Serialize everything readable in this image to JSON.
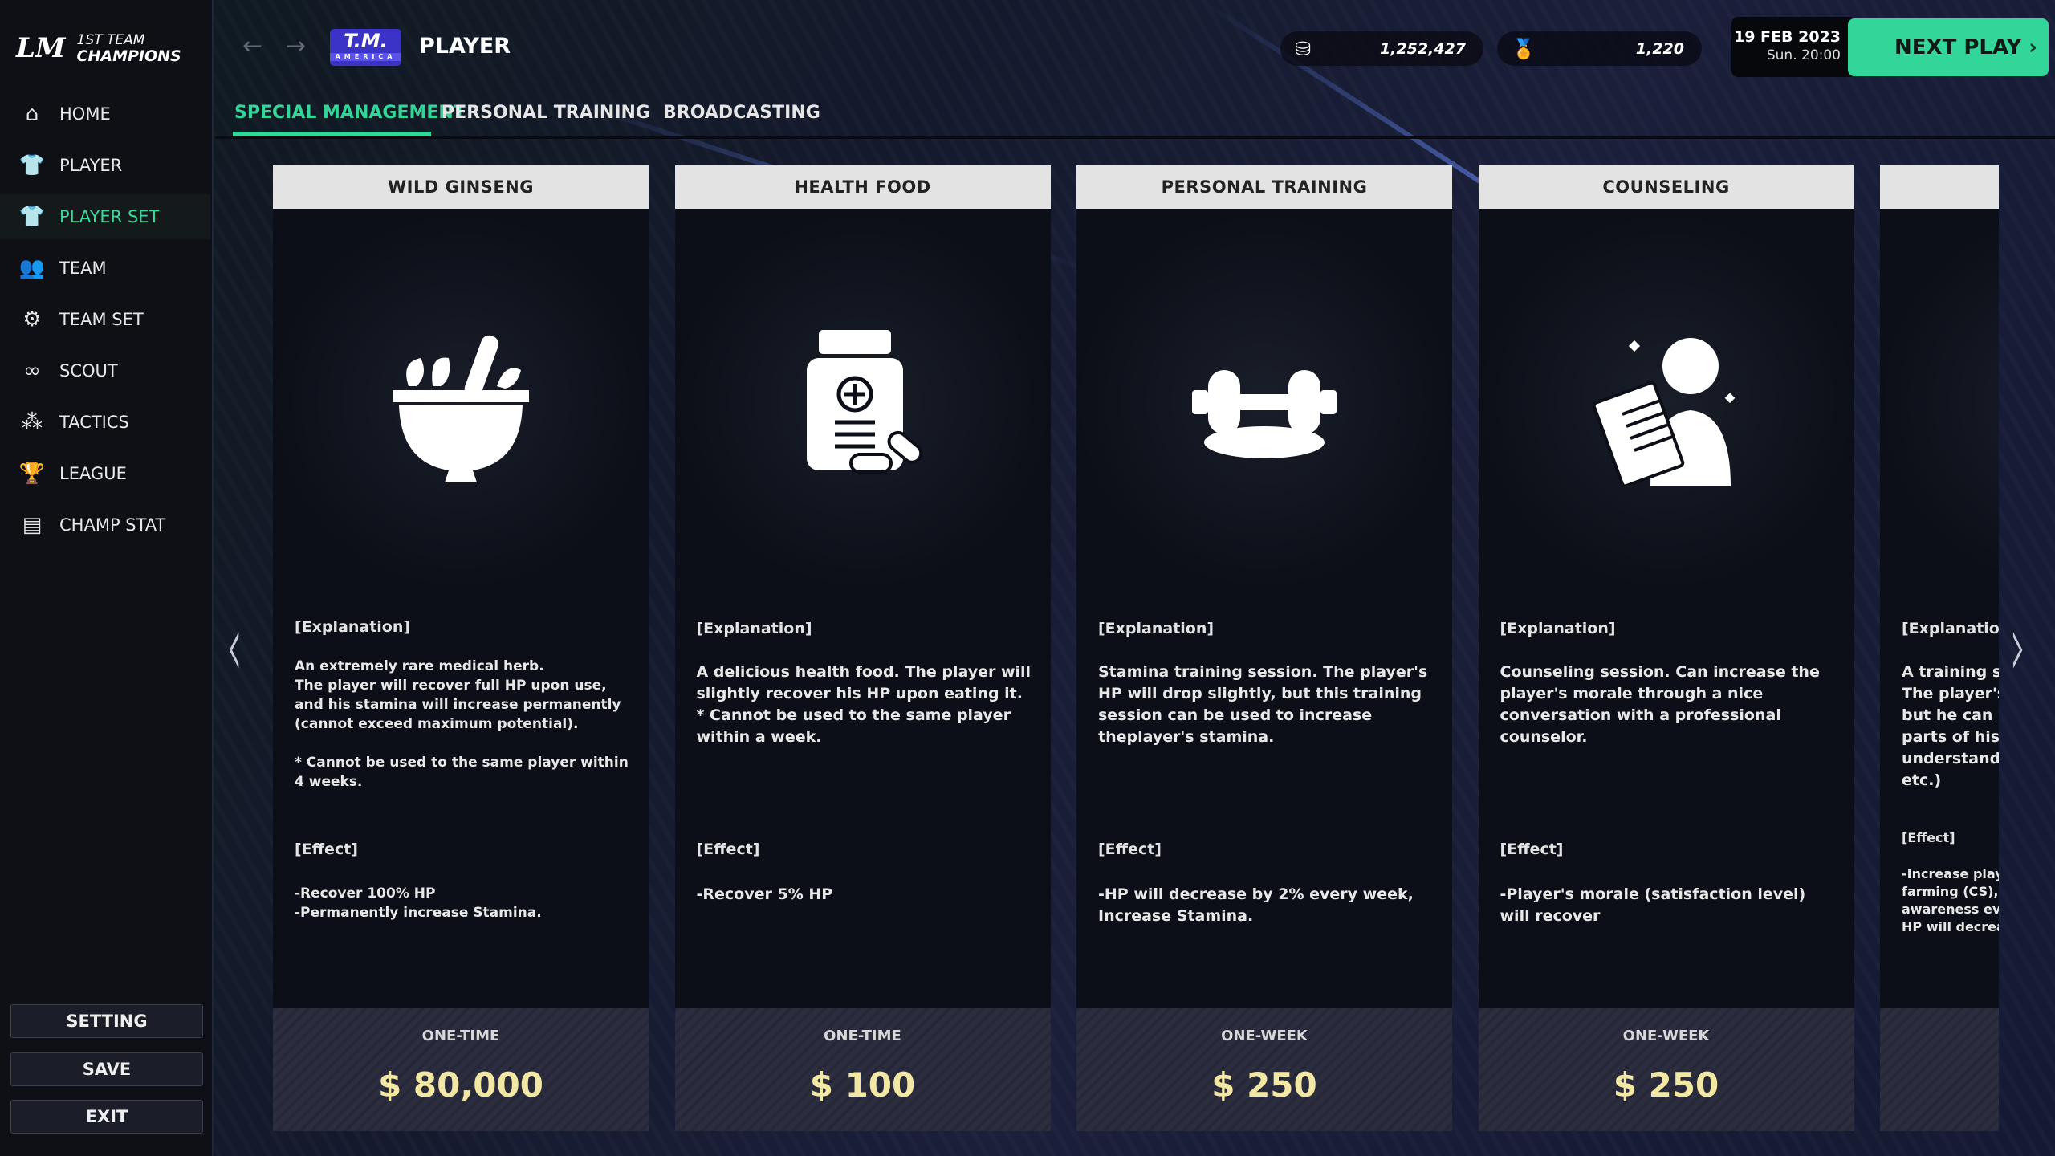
{
  "app": {
    "logo_mark": "LM",
    "logo_line1": "1ST TEAM",
    "logo_line2": "CHAMPIONS"
  },
  "sidebar": {
    "items": [
      {
        "label": "HOME",
        "icon": "home-icon",
        "glyph": "⌂"
      },
      {
        "label": "PLAYER",
        "icon": "shirt-icon",
        "glyph": "👕"
      },
      {
        "label": "PLAYER SET",
        "icon": "player-set-icon",
        "glyph": "👕",
        "active": true
      },
      {
        "label": "TEAM",
        "icon": "team-icon",
        "glyph": "👥"
      },
      {
        "label": "TEAM SET",
        "icon": "team-set-icon",
        "glyph": "⚙"
      },
      {
        "label": "SCOUT",
        "icon": "binoculars-icon",
        "glyph": "∞"
      },
      {
        "label": "TACTICS",
        "icon": "tactics-icon",
        "glyph": "⁂"
      },
      {
        "label": "LEAGUE",
        "icon": "trophy-icon",
        "glyph": "🏆"
      },
      {
        "label": "CHAMP STAT",
        "icon": "clipboard-icon",
        "glyph": "▤"
      }
    ],
    "setting": "SETTING",
    "save": "SAVE",
    "exit": "EXIT"
  },
  "header": {
    "team_logo": "T.M.",
    "team_logo_sub": "AMERICA",
    "title": "PLAYER",
    "money": "1,252,427",
    "medals": "1,220",
    "date": "19 FEB 2023",
    "time": "Sun. 20:00",
    "next_play": "NEXT PLAY"
  },
  "tabs": [
    {
      "label": "SPECIAL MANAGEMENT",
      "active": true
    },
    {
      "label": "PERSONAL TRAINING"
    },
    {
      "label": "BROADCASTING"
    }
  ],
  "colors": {
    "accent": "#33d699",
    "price": "#f3e7a4"
  },
  "cards": [
    {
      "title": "WILD GINSENG",
      "icon": "herb-bowl-icon",
      "explanation_label": "[Explanation]",
      "explanation": "An extremely rare medical herb.\nThe player will recover full HP upon use, and his stamina will increase permanently (cannot exceed maximum potential).\n\n* Cannot be used to the same player within 4 weeks.",
      "effect_label": "[Effect]",
      "effect": "-Recover 100% HP\n-Permanently increase Stamina.",
      "duration": "ONE-TIME",
      "price": "$ 80,000"
    },
    {
      "title": "HEALTH FOOD",
      "icon": "medicine-bottle-icon",
      "explanation_label": "[Explanation]",
      "explanation": "A delicious health food. The player will slightly recover his HP upon eating it. * Cannot be used to the same player within a week.",
      "effect_label": "[Effect]",
      "effect": "-Recover 5% HP",
      "duration": "ONE-TIME",
      "price": "$ 100"
    },
    {
      "title": "PERSONAL TRAINING",
      "icon": "dumbbell-icon",
      "explanation_label": "[Explanation]",
      "explanation": "Stamina training session. The player's HP will drop slightly, but this training session can be used to increase theplayer's stamina.",
      "effect_label": "[Effect]",
      "effect": "-HP will decrease by 2% every week, Increase Stamina.",
      "duration": "ONE-WEEK",
      "price": "$ 250"
    },
    {
      "title": "COUNSELING",
      "icon": "counselor-icon",
      "explanation_label": "[Explanation]",
      "explanation": "Counseling session. Can increase the player's morale through a nice conversation with a professional counselor.",
      "effect_label": "[Effect]",
      "effect": "-Player's morale (satisfaction level) will recover",
      "duration": "ONE-WEEK",
      "price": "$ 250"
    },
    {
      "title": "",
      "icon": "",
      "explanation_label": "[Explanation]",
      "explanation": "A training ses\nThe player's I\nbut he can wo\nparts of his ga\nunderstandin\netc.)",
      "effect_label": "[Effect]",
      "effect": "-Increase player\nfarming (CS), CC\nawareness every\nHP will decrease",
      "duration": "",
      "price": ""
    }
  ]
}
